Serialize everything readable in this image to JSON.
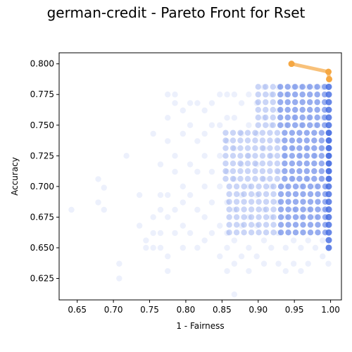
{
  "chart_data": {
    "type": "scatter",
    "title": "german-credit - Pareto Front for Rset",
    "xlabel": "1 - Fairness",
    "ylabel": "Accuracy",
    "xlim": [
      0.625,
      1.015
    ],
    "ylim": [
      0.6075,
      0.809
    ],
    "xticks": [
      "0.65",
      "0.70",
      "0.75",
      "0.80",
      "0.85",
      "0.90",
      "0.95",
      "1.00"
    ],
    "yticks": [
      "0.625",
      "0.650",
      "0.675",
      "0.700",
      "0.725",
      "0.750",
      "0.775",
      "0.800"
    ],
    "grid": false,
    "legend": "none",
    "colors": {
      "rset_points": "#4169e1",
      "pareto_front": "#f5a742"
    },
    "series": [
      {
        "kind": "scatter",
        "description": "Rashomon set models (dense cloud, alpha ~0.1)",
        "points": [
          [
            0.642,
            0.681
          ],
          [
            0.679,
            0.706
          ],
          [
            0.679,
            0.687
          ],
          [
            0.687,
            0.699
          ],
          [
            0.687,
            0.681
          ],
          [
            0.708,
            0.637
          ],
          [
            0.708,
            0.625
          ],
          [
            0.718,
            0.725
          ],
          [
            0.736,
            0.693
          ],
          [
            0.736,
            0.668
          ],
          [
            0.745,
            0.656
          ],
          [
            0.745,
            0.65
          ],
          [
            0.755,
            0.743
          ],
          [
            0.755,
            0.675
          ],
          [
            0.755,
            0.662
          ],
          [
            0.755,
            0.65
          ],
          [
            0.765,
            0.718
          ],
          [
            0.765,
            0.693
          ],
          [
            0.765,
            0.681
          ],
          [
            0.765,
            0.662
          ],
          [
            0.765,
            0.65
          ],
          [
            0.775,
            0.775
          ],
          [
            0.775,
            0.756
          ],
          [
            0.775,
            0.737
          ],
          [
            0.775,
            0.693
          ],
          [
            0.775,
            0.675
          ],
          [
            0.775,
            0.643
          ],
          [
            0.775,
            0.631
          ],
          [
            0.785,
            0.775
          ],
          [
            0.785,
            0.768
          ],
          [
            0.785,
            0.725
          ],
          [
            0.785,
            0.712
          ],
          [
            0.785,
            0.681
          ],
          [
            0.785,
            0.662
          ],
          [
            0.796,
            0.762
          ],
          [
            0.796,
            0.743
          ],
          [
            0.796,
            0.7
          ],
          [
            0.796,
            0.687
          ],
          [
            0.796,
            0.668
          ],
          [
            0.796,
            0.65
          ],
          [
            0.806,
            0.768
          ],
          [
            0.806,
            0.75
          ],
          [
            0.806,
            0.718
          ],
          [
            0.806,
            0.693
          ],
          [
            0.806,
            0.662
          ],
          [
            0.816,
            0.768
          ],
          [
            0.816,
            0.737
          ],
          [
            0.816,
            0.712
          ],
          [
            0.816,
            0.681
          ],
          [
            0.816,
            0.65
          ],
          [
            0.826,
            0.762
          ],
          [
            0.826,
            0.743
          ],
          [
            0.826,
            0.725
          ],
          [
            0.826,
            0.7
          ],
          [
            0.826,
            0.675
          ],
          [
            0.826,
            0.656
          ],
          [
            0.836,
            0.768
          ],
          [
            0.836,
            0.75
          ],
          [
            0.836,
            0.712
          ],
          [
            0.836,
            0.687
          ],
          [
            0.836,
            0.662
          ],
          [
            0.847,
            0.775
          ],
          [
            0.847,
            0.75
          ],
          [
            0.847,
            0.725
          ],
          [
            0.847,
            0.7
          ],
          [
            0.847,
            0.668
          ],
          [
            0.847,
            0.643
          ],
          [
            0.857,
            0.775
          ],
          [
            0.857,
            0.756
          ],
          [
            0.857,
            0.737
          ],
          [
            0.857,
            0.712
          ],
          [
            0.857,
            0.687
          ],
          [
            0.857,
            0.662
          ],
          [
            0.857,
            0.65
          ],
          [
            0.857,
            0.631
          ],
          [
            0.867,
            0.775
          ],
          [
            0.867,
            0.756
          ],
          [
            0.867,
            0.731
          ],
          [
            0.867,
            0.706
          ],
          [
            0.867,
            0.681
          ],
          [
            0.867,
            0.656
          ],
          [
            0.867,
            0.637
          ],
          [
            0.867,
            0.612
          ],
          [
            0.877,
            0.768
          ],
          [
            0.877,
            0.743
          ],
          [
            0.877,
            0.718
          ],
          [
            0.877,
            0.693
          ],
          [
            0.877,
            0.668
          ],
          [
            0.877,
            0.643
          ],
          [
            0.887,
            0.775
          ],
          [
            0.887,
            0.75
          ],
          [
            0.887,
            0.725
          ],
          [
            0.887,
            0.7
          ],
          [
            0.887,
            0.675
          ],
          [
            0.887,
            0.65
          ],
          [
            0.887,
            0.631
          ],
          [
            0.898,
            0.768
          ],
          [
            0.898,
            0.743
          ],
          [
            0.898,
            0.718
          ],
          [
            0.898,
            0.693
          ],
          [
            0.898,
            0.668
          ],
          [
            0.898,
            0.643
          ],
          [
            0.908,
            0.781
          ],
          [
            0.908,
            0.756
          ],
          [
            0.908,
            0.731
          ],
          [
            0.908,
            0.706
          ],
          [
            0.908,
            0.681
          ],
          [
            0.908,
            0.656
          ],
          [
            0.908,
            0.637
          ],
          [
            0.918,
            0.775
          ],
          [
            0.918,
            0.75
          ],
          [
            0.918,
            0.725
          ],
          [
            0.918,
            0.7
          ],
          [
            0.918,
            0.675
          ],
          [
            0.918,
            0.65
          ],
          [
            0.928,
            0.781
          ],
          [
            0.928,
            0.762
          ],
          [
            0.928,
            0.737
          ],
          [
            0.928,
            0.712
          ],
          [
            0.928,
            0.687
          ],
          [
            0.928,
            0.662
          ],
          [
            0.928,
            0.637
          ],
          [
            0.938,
            0.775
          ],
          [
            0.938,
            0.75
          ],
          [
            0.938,
            0.725
          ],
          [
            0.938,
            0.7
          ],
          [
            0.938,
            0.675
          ],
          [
            0.938,
            0.65
          ],
          [
            0.938,
            0.631
          ],
          [
            0.949,
            0.781
          ],
          [
            0.949,
            0.756
          ],
          [
            0.949,
            0.731
          ],
          [
            0.949,
            0.706
          ],
          [
            0.949,
            0.681
          ],
          [
            0.949,
            0.656
          ],
          [
            0.949,
            0.637
          ],
          [
            0.959,
            0.781
          ],
          [
            0.959,
            0.75
          ],
          [
            0.959,
            0.725
          ],
          [
            0.959,
            0.7
          ],
          [
            0.959,
            0.675
          ],
          [
            0.959,
            0.65
          ],
          [
            0.959,
            0.631
          ],
          [
            0.969,
            0.781
          ],
          [
            0.969,
            0.756
          ],
          [
            0.969,
            0.731
          ],
          [
            0.969,
            0.706
          ],
          [
            0.969,
            0.681
          ],
          [
            0.969,
            0.656
          ],
          [
            0.969,
            0.637
          ],
          [
            0.979,
            0.781
          ],
          [
            0.979,
            0.75
          ],
          [
            0.979,
            0.725
          ],
          [
            0.979,
            0.7
          ],
          [
            0.979,
            0.675
          ],
          [
            0.979,
            0.65
          ],
          [
            0.989,
            0.781
          ],
          [
            0.989,
            0.756
          ],
          [
            0.989,
            0.731
          ],
          [
            0.989,
            0.706
          ],
          [
            0.989,
            0.681
          ],
          [
            0.989,
            0.656
          ],
          [
            0.989,
            0.643
          ],
          [
            0.997,
            0.781
          ],
          [
            0.997,
            0.75
          ],
          [
            0.997,
            0.725
          ],
          [
            0.997,
            0.7
          ],
          [
            0.997,
            0.675
          ],
          [
            0.997,
            0.65
          ],
          [
            0.997,
            0.637
          ]
        ]
      },
      {
        "kind": "line",
        "description": "Pareto front",
        "points": [
          [
            0.946,
            0.8
          ],
          [
            0.997,
            0.7935
          ],
          [
            0.998,
            0.7875
          ]
        ]
      }
    ]
  }
}
